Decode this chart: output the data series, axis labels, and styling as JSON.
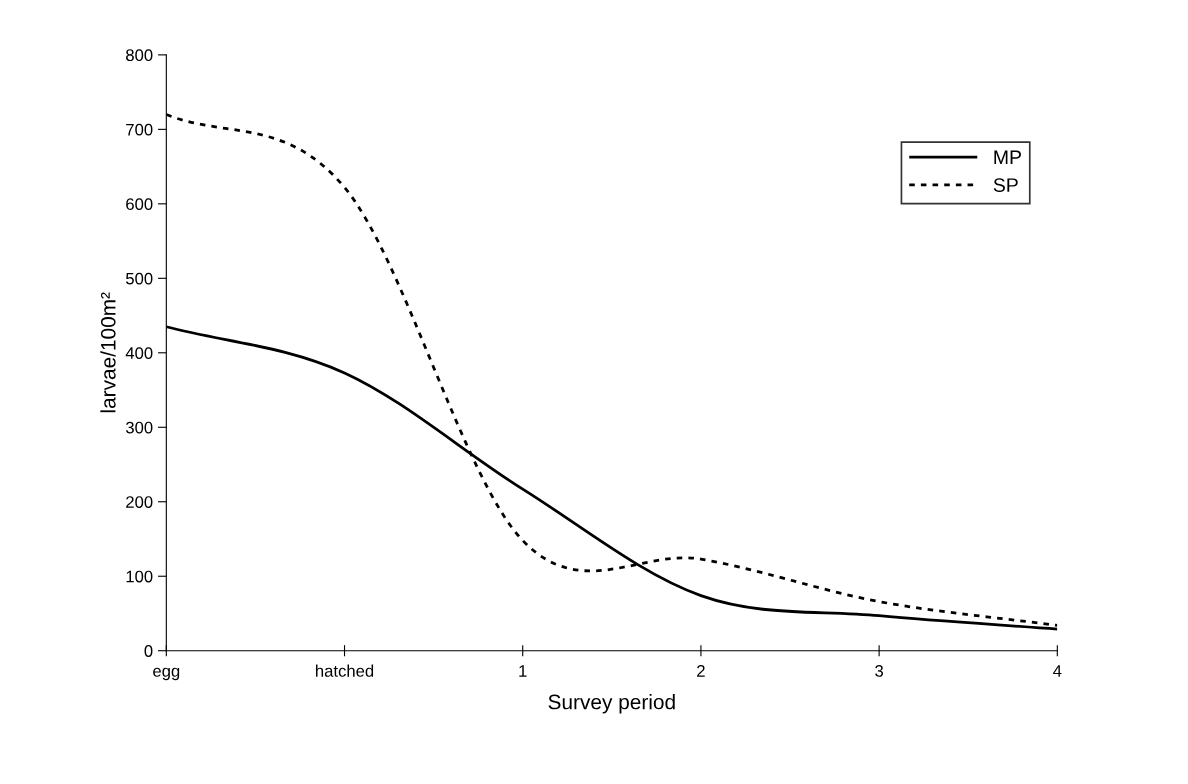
{
  "chart_data": {
    "type": "line",
    "xlabel": "Survey period",
    "ylabel": "larvae/100m²",
    "categories": [
      "egg",
      "hatched",
      "1",
      "2",
      "3",
      "4"
    ],
    "series": [
      {
        "name": "MP",
        "color": "#000000",
        "line_style": "solid",
        "values": [
          435,
          373,
          217,
          74,
          47,
          29
        ]
      },
      {
        "name": "SP",
        "color": "#000000",
        "line_style": "dotted",
        "values": [
          720,
          622,
          148,
          123,
          66,
          34
        ]
      }
    ],
    "ylim": [
      0,
      800
    ],
    "yticks": [
      0,
      100,
      200,
      300,
      400,
      500,
      600,
      700,
      800
    ],
    "grid": false,
    "legend": "top right",
    "marker": "none"
  }
}
